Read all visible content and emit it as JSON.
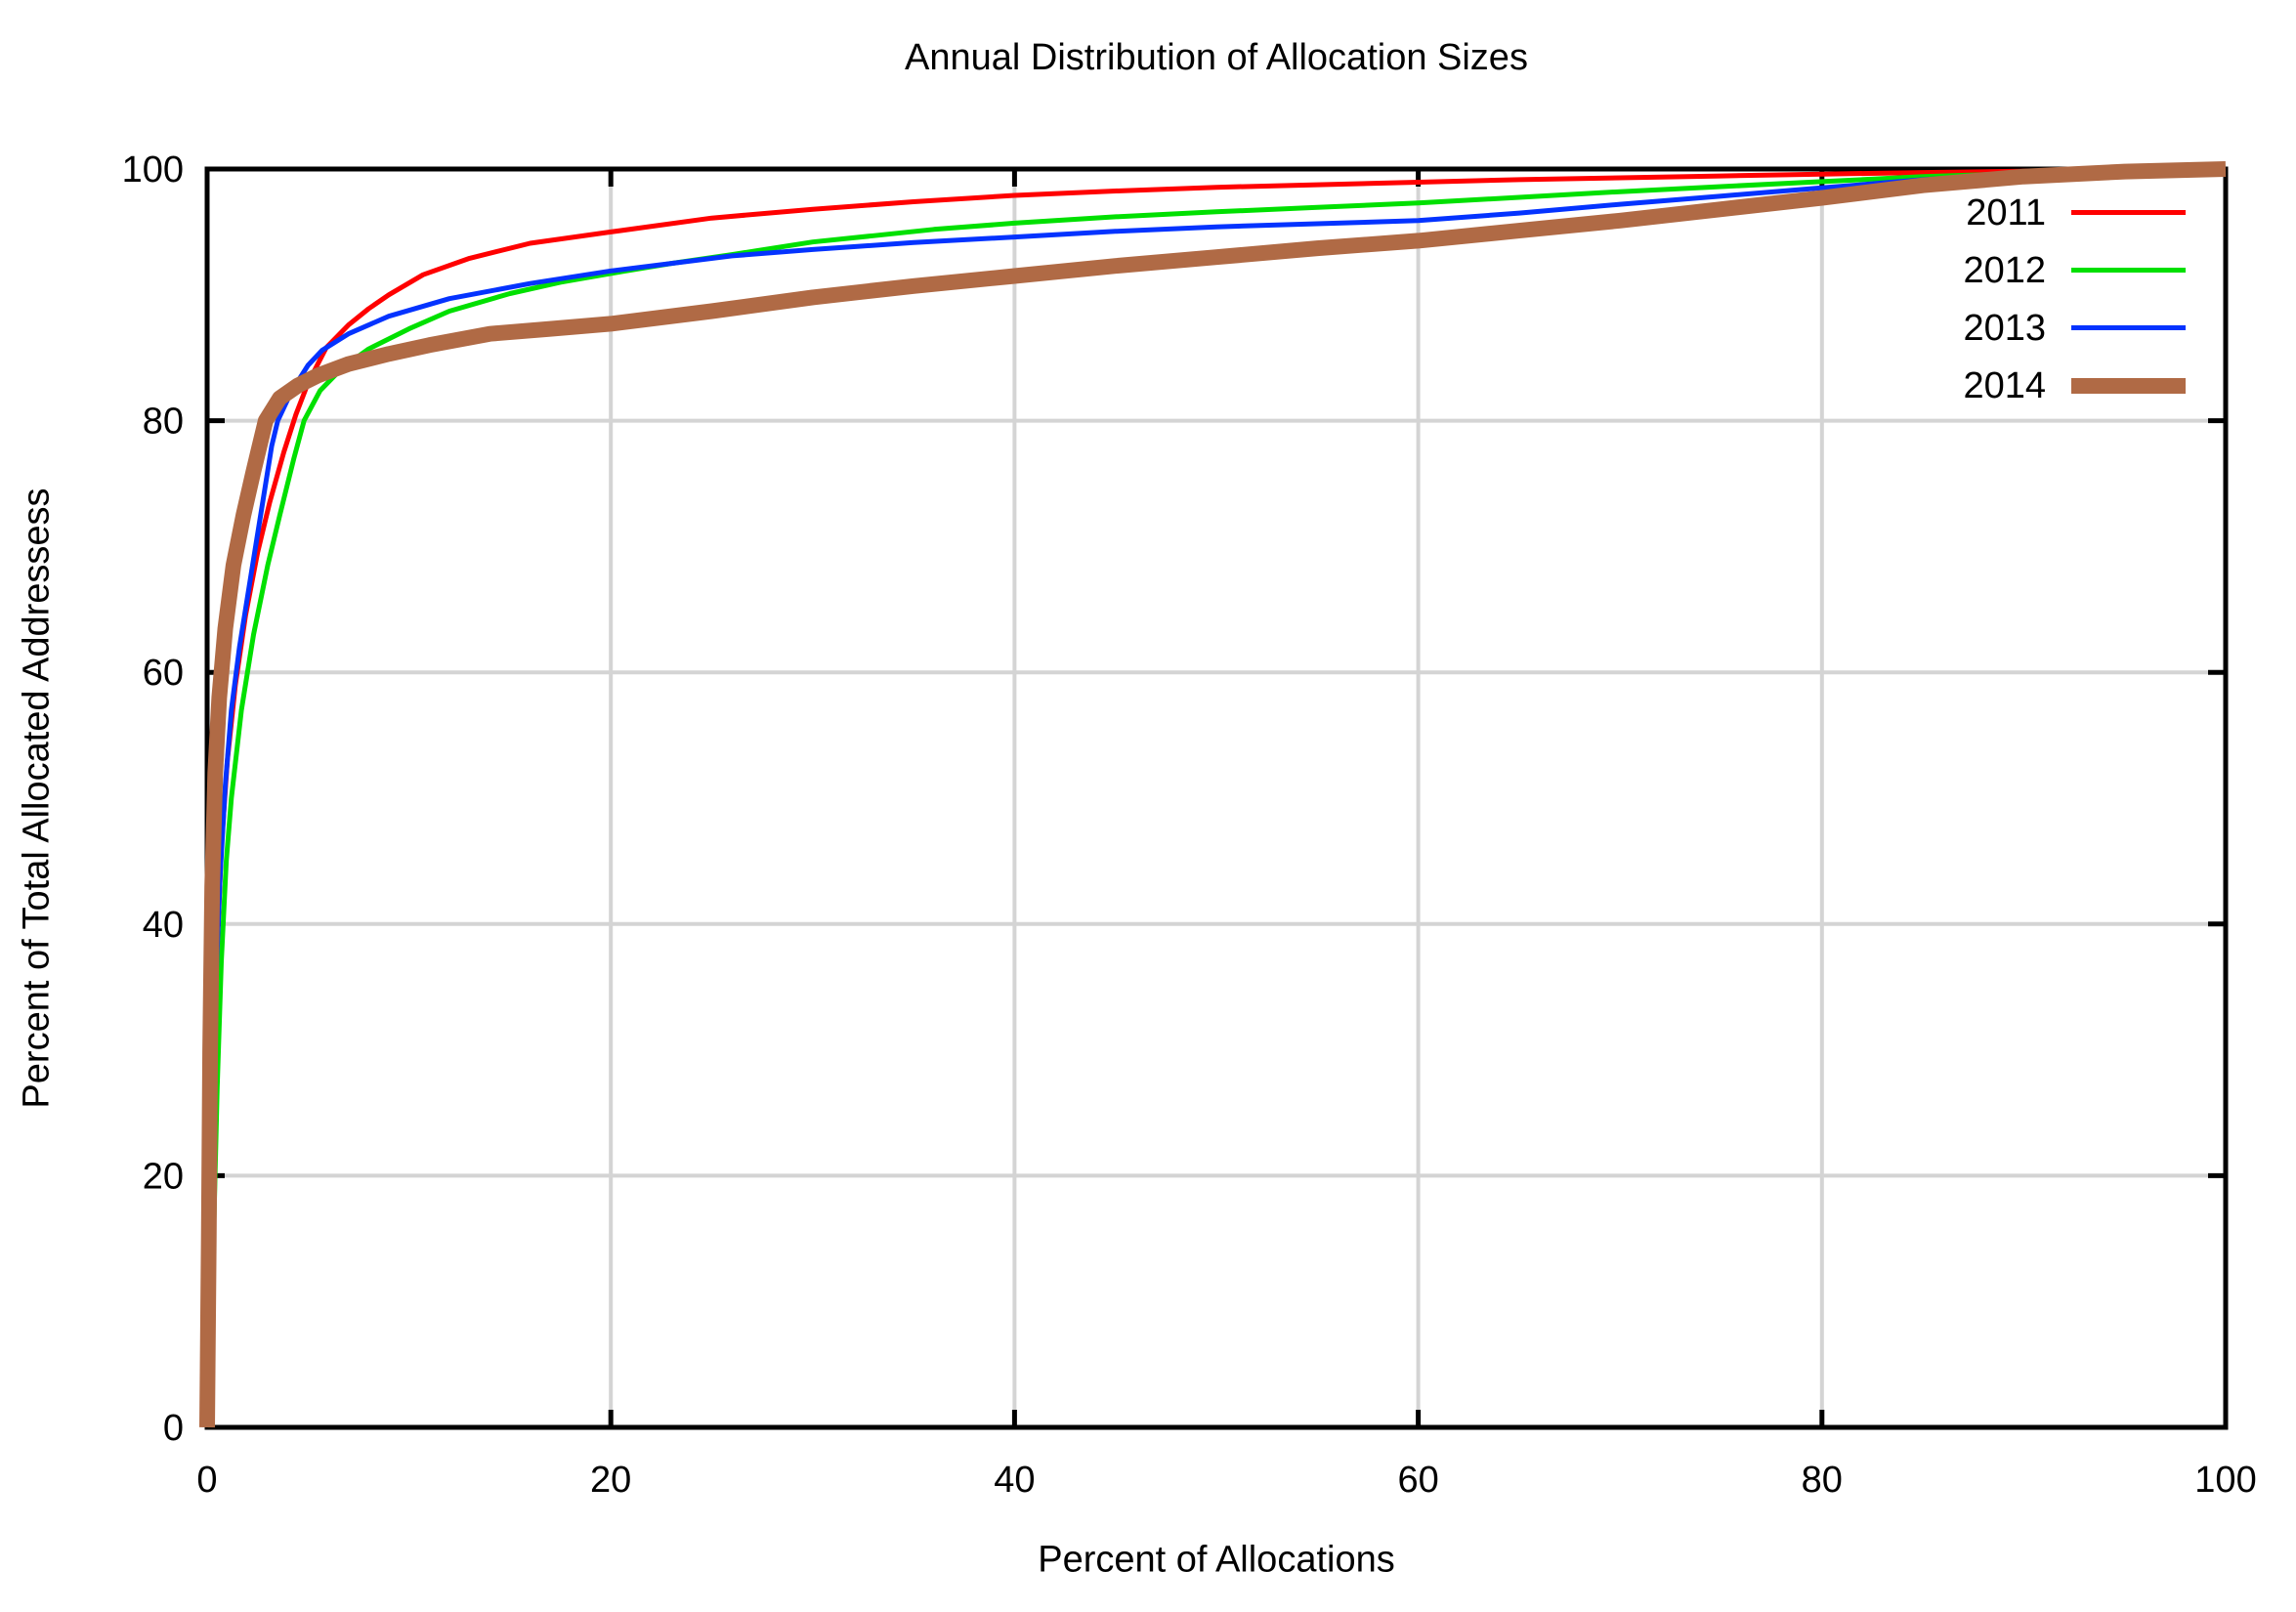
{
  "chart_data": {
    "type": "line",
    "title": "Annual Distribution of Allocation Sizes",
    "xlabel": "Percent of Allocations",
    "ylabel": "Percent of Total Allocated Addressess",
    "xlim": [
      0,
      100
    ],
    "ylim": [
      0,
      100
    ],
    "xticks": [
      0,
      20,
      40,
      60,
      80,
      100
    ],
    "yticks": [
      0,
      20,
      40,
      60,
      80,
      100
    ],
    "grid": true,
    "grid_color": "#d4d4d4",
    "border_color": "#000000",
    "background": "#ffffff",
    "legend_position": "top-right-inside",
    "series": [
      {
        "name": "2011",
        "color": "#ff0000",
        "line_width": 5,
        "points": [
          [
            0,
            0
          ],
          [
            0.2,
            14
          ],
          [
            0.35,
            28
          ],
          [
            0.5,
            38
          ],
          [
            0.7,
            46
          ],
          [
            1,
            53
          ],
          [
            1.4,
            59
          ],
          [
            1.9,
            64.5
          ],
          [
            2.5,
            69.5
          ],
          [
            3.1,
            73.5
          ],
          [
            3.8,
            77.5
          ],
          [
            4.4,
            80.5
          ],
          [
            5,
            83
          ],
          [
            5.9,
            85.8
          ],
          [
            7,
            87.6
          ],
          [
            8,
            88.9
          ],
          [
            9,
            90
          ],
          [
            10.7,
            91.6
          ],
          [
            13,
            92.9
          ],
          [
            16,
            94.1
          ],
          [
            20,
            95
          ],
          [
            25,
            96.1
          ],
          [
            30,
            96.8
          ],
          [
            35,
            97.4
          ],
          [
            40,
            97.9
          ],
          [
            45,
            98.25
          ],
          [
            50,
            98.55
          ],
          [
            55,
            98.75
          ],
          [
            60,
            98.95
          ],
          [
            65,
            99.15
          ],
          [
            70,
            99.3
          ],
          [
            75,
            99.45
          ],
          [
            80,
            99.6
          ],
          [
            85,
            99.72
          ],
          [
            90,
            99.82
          ],
          [
            95,
            99.92
          ],
          [
            100,
            100
          ]
        ]
      },
      {
        "name": "2012",
        "color": "#00e000",
        "line_width": 5,
        "points": [
          [
            0,
            0
          ],
          [
            0.3,
            14
          ],
          [
            0.5,
            27
          ],
          [
            0.7,
            37
          ],
          [
            0.95,
            45
          ],
          [
            1.2,
            50
          ],
          [
            1.7,
            57
          ],
          [
            2.3,
            63
          ],
          [
            3,
            68.5
          ],
          [
            3.6,
            72.5
          ],
          [
            4.3,
            77
          ],
          [
            4.8,
            80
          ],
          [
            5.6,
            82.4
          ],
          [
            6.7,
            84.2
          ],
          [
            8,
            85.7
          ],
          [
            10,
            87.3
          ],
          [
            12,
            88.7
          ],
          [
            15,
            90.1
          ],
          [
            17.5,
            91
          ],
          [
            20,
            91.7
          ],
          [
            23,
            92.5
          ],
          [
            26,
            93.2
          ],
          [
            30,
            94.2
          ],
          [
            33,
            94.7
          ],
          [
            36,
            95.2
          ],
          [
            40,
            95.7
          ],
          [
            45,
            96.2
          ],
          [
            50,
            96.6
          ],
          [
            55,
            96.95
          ],
          [
            60,
            97.3
          ],
          [
            65,
            97.75
          ],
          [
            70,
            98.2
          ],
          [
            75,
            98.6
          ],
          [
            80,
            99
          ],
          [
            85,
            99.4
          ],
          [
            90,
            99.65
          ],
          [
            95,
            99.85
          ],
          [
            100,
            100
          ]
        ]
      },
      {
        "name": "2013",
        "color": "#0433ff",
        "line_width": 5,
        "points": [
          [
            0,
            0
          ],
          [
            0.15,
            14
          ],
          [
            0.3,
            27
          ],
          [
            0.45,
            36
          ],
          [
            0.65,
            44
          ],
          [
            0.9,
            51
          ],
          [
            1.2,
            57
          ],
          [
            1.6,
            62
          ],
          [
            2.1,
            67
          ],
          [
            2.7,
            73
          ],
          [
            3.2,
            78
          ],
          [
            3.5,
            80
          ],
          [
            4.2,
            82.4
          ],
          [
            5,
            84.4
          ],
          [
            5.7,
            85.6
          ],
          [
            7,
            86.9
          ],
          [
            9,
            88.3
          ],
          [
            12,
            89.7
          ],
          [
            16,
            90.9
          ],
          [
            20,
            91.9
          ],
          [
            23,
            92.5
          ],
          [
            26,
            93.1
          ],
          [
            30,
            93.6
          ],
          [
            35,
            94.15
          ],
          [
            40,
            94.6
          ],
          [
            45,
            95.05
          ],
          [
            50,
            95.4
          ],
          [
            55,
            95.65
          ],
          [
            60,
            95.9
          ],
          [
            65,
            96.5
          ],
          [
            70,
            97.2
          ],
          [
            75,
            97.85
          ],
          [
            80,
            98.5
          ],
          [
            85,
            99.15
          ],
          [
            90,
            99.6
          ],
          [
            95,
            99.85
          ],
          [
            100,
            100
          ]
        ]
      },
      {
        "name": "2014",
        "color": "#b06a45",
        "line_width": 16,
        "points": [
          [
            0,
            0
          ],
          [
            0.08,
            15
          ],
          [
            0.15,
            30
          ],
          [
            0.25,
            43
          ],
          [
            0.4,
            52
          ],
          [
            0.6,
            58
          ],
          [
            0.9,
            63.5
          ],
          [
            1.3,
            68.5
          ],
          [
            1.8,
            72.5
          ],
          [
            2.3,
            76
          ],
          [
            2.9,
            80
          ],
          [
            3.6,
            81.8
          ],
          [
            4.5,
            82.8
          ],
          [
            5.5,
            83.6
          ],
          [
            7,
            84.5
          ],
          [
            9,
            85.3
          ],
          [
            11,
            86
          ],
          [
            14,
            86.9
          ],
          [
            17,
            87.3
          ],
          [
            20,
            87.7
          ],
          [
            25,
            88.7
          ],
          [
            30,
            89.8
          ],
          [
            35,
            90.7
          ],
          [
            40,
            91.5
          ],
          [
            45,
            92.3
          ],
          [
            50,
            93
          ],
          [
            55,
            93.7
          ],
          [
            60,
            94.3
          ],
          [
            65,
            95.1
          ],
          [
            70,
            95.9
          ],
          [
            75,
            96.8
          ],
          [
            80,
            97.7
          ],
          [
            85,
            98.7
          ],
          [
            90,
            99.4
          ],
          [
            95,
            99.8
          ],
          [
            100,
            100
          ]
        ]
      }
    ]
  }
}
